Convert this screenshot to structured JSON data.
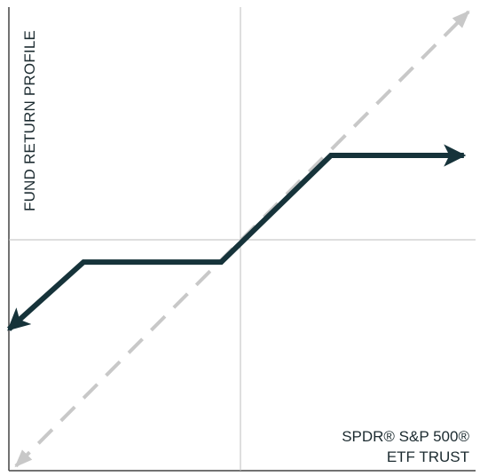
{
  "colors": {
    "payoff": "#16333a",
    "benchmark": "#c8c8c8",
    "axis": "#bdbdbd",
    "frame": "#444444"
  },
  "chart_data": {
    "type": "line",
    "title": "",
    "ylabel": "FUND RETURN PROFILE",
    "xlabel_lines": [
      "SPDR® S&P 500®",
      "ETF TRUST"
    ],
    "xlim": [
      -1,
      1
    ],
    "ylim": [
      -1,
      1
    ],
    "grid": false,
    "legend": "none",
    "series": [
      {
        "style": "solid-arrows-both-ends",
        "x": [
          -1,
          -0.68,
          -0.09,
          0.38,
          0.95
        ],
        "y": [
          -0.39,
          -0.1,
          -0.1,
          0.36,
          0.36
        ]
      },
      {
        "style": "dashed-arrows-both-ends",
        "x": [
          -0.97,
          0.97
        ],
        "y": [
          -0.98,
          0.98
        ]
      }
    ]
  }
}
